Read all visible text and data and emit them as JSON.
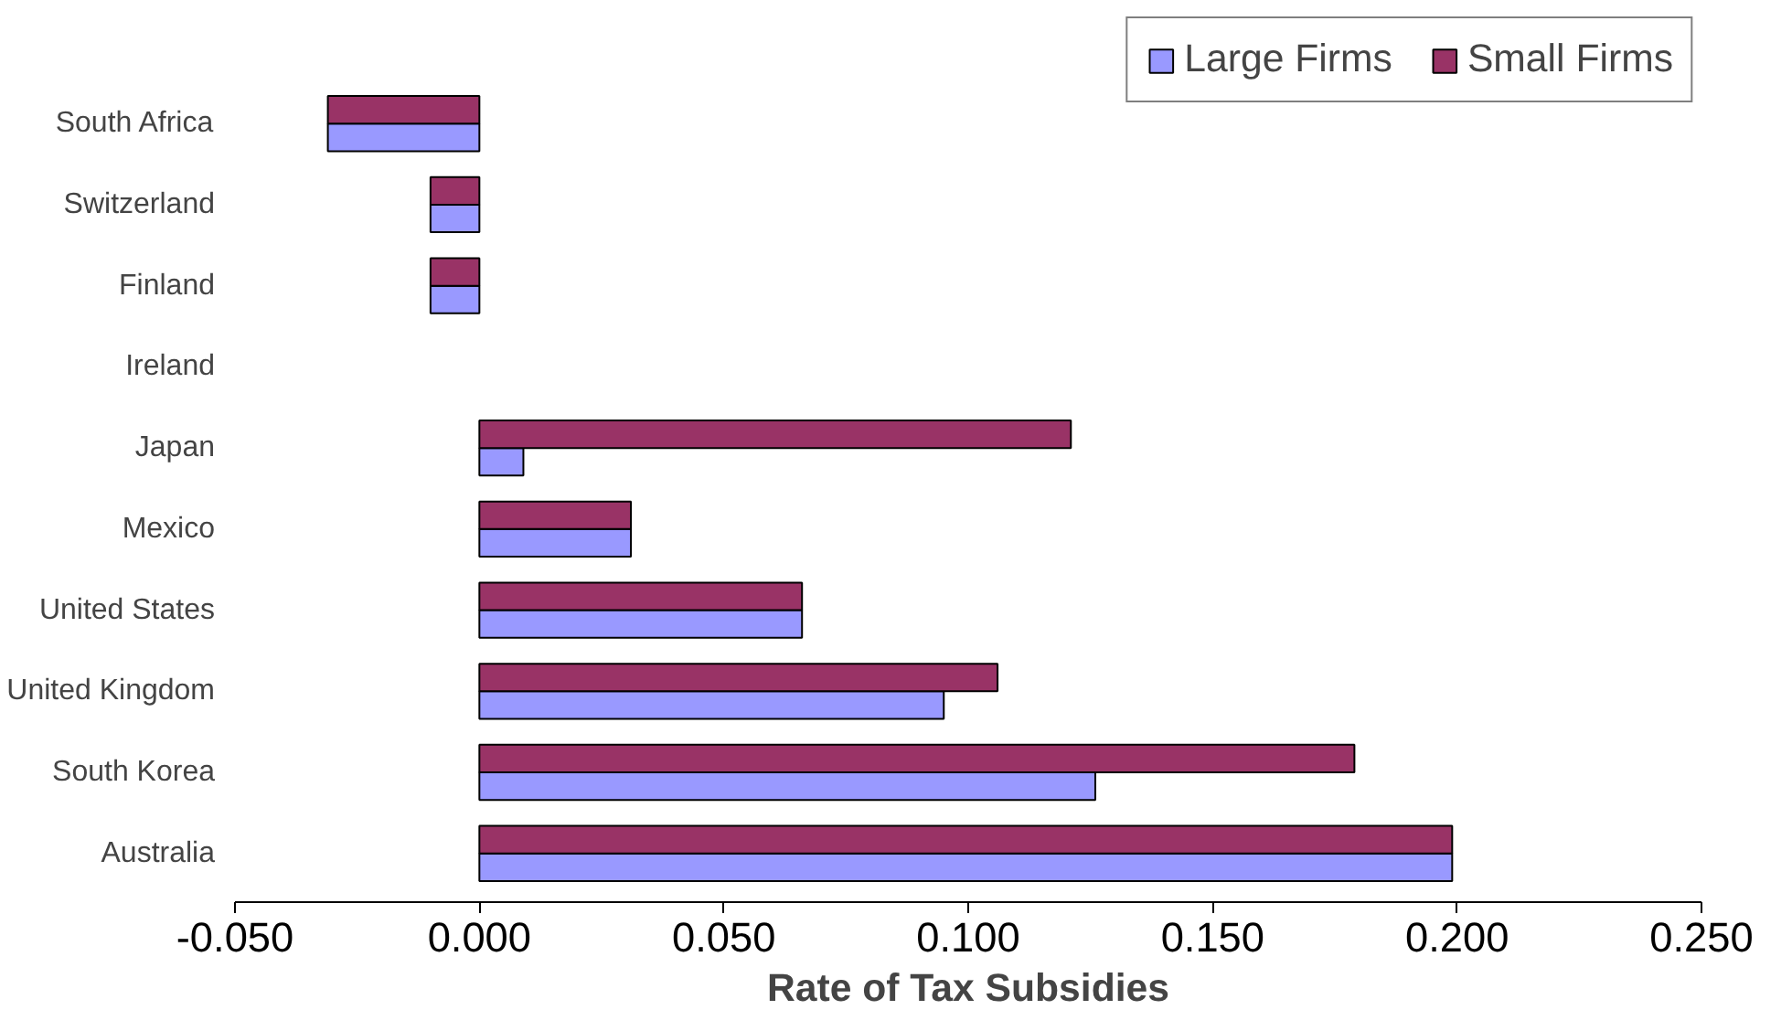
{
  "chart_data": {
    "type": "bar",
    "orientation": "horizontal",
    "xlabel": "Rate of Tax Subsidies",
    "categories": [
      "South Africa",
      "Switzerland",
      "Finland",
      "Ireland",
      "Japan",
      "Mexico",
      "United States",
      "United Kingdom",
      "South Korea",
      "Australia"
    ],
    "series": [
      {
        "name": "Large Firms",
        "color": "#9999ff",
        "values": [
          -0.031,
          -0.01,
          -0.01,
          0,
          0.009,
          0.031,
          0.066,
          0.095,
          0.126,
          0.199
        ]
      },
      {
        "name": "Small Firms",
        "color": "#993366",
        "values": [
          -0.031,
          -0.01,
          -0.01,
          0,
          0.121,
          0.031,
          0.066,
          0.106,
          0.179,
          0.199
        ]
      }
    ],
    "xlim": [
      -0.05,
      0.25
    ],
    "xticks": [
      {
        "value": -0.05,
        "label": "-0.050"
      },
      {
        "value": 0,
        "label": "0.000"
      },
      {
        "value": 0.05,
        "label": "0.050"
      },
      {
        "value": 0.1,
        "label": "0.100"
      },
      {
        "value": 0.15,
        "label": "0.150"
      },
      {
        "value": 0.2,
        "label": "0.200"
      },
      {
        "value": 0.25,
        "label": "0.250"
      }
    ],
    "grid": false,
    "legend": "top right"
  }
}
